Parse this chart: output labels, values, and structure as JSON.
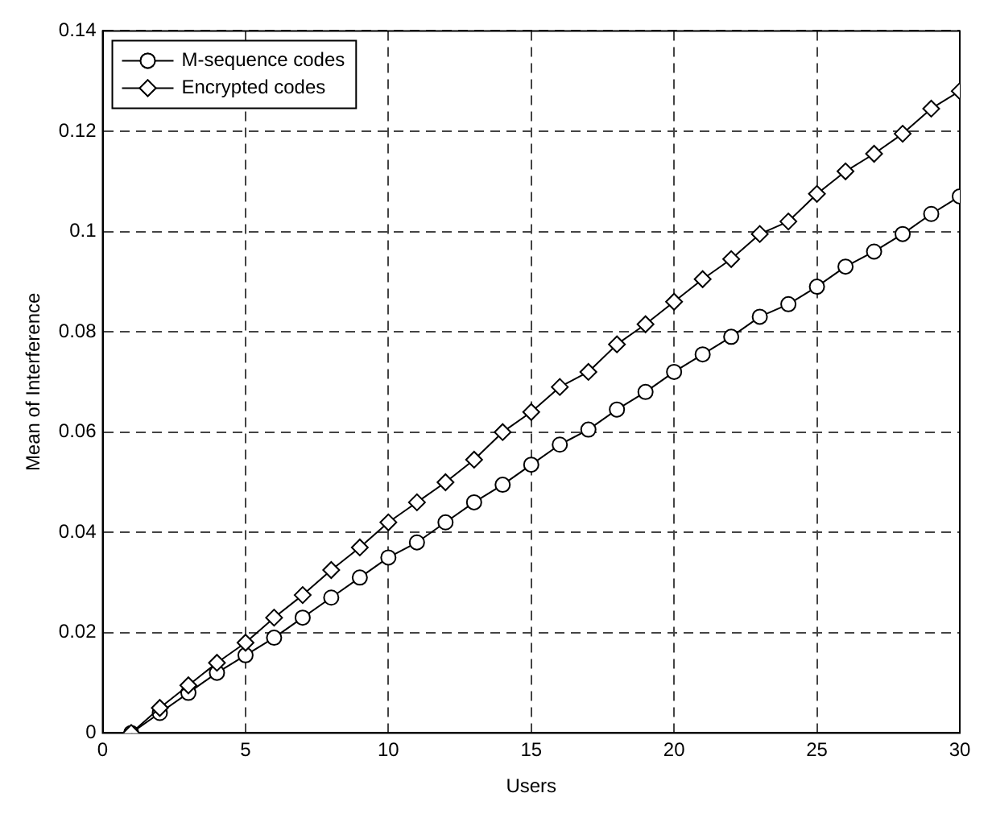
{
  "chart_data": {
    "type": "line",
    "xlabel": "Users",
    "ylabel": "Mean of Interference",
    "x": [
      1,
      2,
      3,
      4,
      5,
      6,
      7,
      8,
      9,
      10,
      11,
      12,
      13,
      14,
      15,
      16,
      17,
      18,
      19,
      20,
      21,
      22,
      23,
      24,
      25,
      26,
      27,
      28,
      29,
      30
    ],
    "xlim": [
      0,
      30
    ],
    "xticks": [
      0,
      5,
      10,
      15,
      20,
      25,
      30
    ],
    "ylim": [
      0,
      0.14
    ],
    "yticks": [
      0,
      0.02,
      0.04,
      0.06,
      0.08,
      0.1,
      0.12,
      0.14
    ],
    "grid": true,
    "legend": "top left",
    "line_style": "solid",
    "series": [
      {
        "name": "M-sequence codes",
        "color": "#000000",
        "marker": "circle",
        "values": [
          0,
          0.004,
          0.008,
          0.012,
          0.0155,
          0.019,
          0.023,
          0.027,
          0.031,
          0.035,
          0.038,
          0.042,
          0.046,
          0.0495,
          0.0535,
          0.0575,
          0.0605,
          0.0645,
          0.068,
          0.072,
          0.0755,
          0.079,
          0.083,
          0.0855,
          0.089,
          0.093,
          0.096,
          0.0995,
          0.1035,
          0.107
        ]
      },
      {
        "name": "Encrypted codes",
        "color": "#000000",
        "marker": "diamond",
        "values": [
          0,
          0.005,
          0.0095,
          0.014,
          0.018,
          0.023,
          0.0275,
          0.0325,
          0.037,
          0.042,
          0.046,
          0.05,
          0.0545,
          0.06,
          0.064,
          0.069,
          0.072,
          0.0775,
          0.0815,
          0.086,
          0.0905,
          0.0945,
          0.0995,
          0.102,
          0.1075,
          0.112,
          0.1155,
          0.1195,
          0.1245,
          0.128
        ]
      }
    ]
  }
}
